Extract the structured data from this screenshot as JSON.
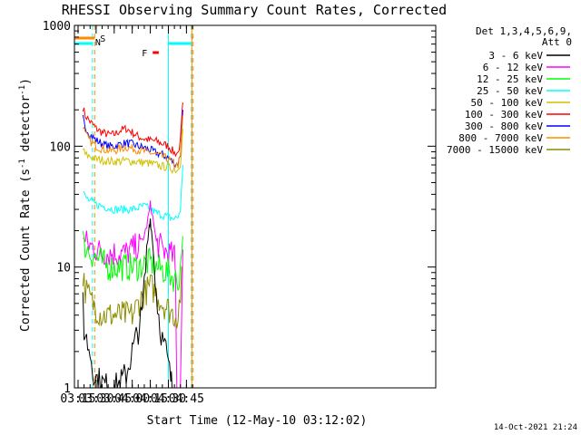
{
  "chart_data": {
    "type": "line",
    "title": "RHESSI Observing Summary Count Rates, Corrected",
    "xlabel": "Start Time (12-May-10 03:12:02)",
    "ylabel": "Corrected Count Rate (s",
    "ylabel_sup1": "-1",
    "ylabel_mid": " detector",
    "ylabel_sup2": "-1",
    "ylabel_end": ")",
    "y_scale": "log",
    "ylim": [
      1,
      1000
    ],
    "xlim_min": [
      192,
      492
    ],
    "x_ticks": [
      {
        "min": 195,
        "label": "03:15"
      },
      {
        "min": 210,
        "label": "03:30"
      },
      {
        "min": 225,
        "label": "03:45"
      },
      {
        "min": 240,
        "label": "04:00"
      },
      {
        "min": 255,
        "label": "04:15"
      },
      {
        "min": 270,
        "label": "04:30"
      },
      {
        "min": 285,
        "label": "04:45"
      }
    ],
    "y_ticks": [
      {
        "value": 1,
        "label": "1"
      },
      {
        "value": 10,
        "label": "10"
      },
      {
        "value": 100,
        "label": "100"
      },
      {
        "value": 1000,
        "label": "1000"
      }
    ],
    "detectors_label": "Det 1,3,4,5,6,9,",
    "attenuator_label": "Att 0",
    "timestamp": "14-Oct-2021 21:24",
    "legend": [
      {
        "name": "3 - 6 keV",
        "color": "#000000"
      },
      {
        "name": "6 - 12 keV",
        "color": "#ff00ff"
      },
      {
        "name": "12 - 25 keV",
        "color": "#00ff00"
      },
      {
        "name": "25 - 50 keV",
        "color": "#00ffff"
      },
      {
        "name": "50 - 100 keV",
        "color": "#d0c000"
      },
      {
        "name": "100 - 300 keV",
        "color": "#ff0000"
      },
      {
        "name": "300 - 800 keV",
        "color": "#0000ff"
      },
      {
        "name": "800 - 7000 keV",
        "color": "#ff8c00"
      },
      {
        "name": "7000 - 15000 keV",
        "color": "#8b8b00"
      }
    ],
    "series": [
      {
        "name": "100 - 300 keV",
        "color": "#ff0000",
        "x": [
          199,
          201,
          205,
          210,
          215,
          220,
          225,
          230,
          235,
          240,
          245,
          250,
          255,
          260,
          265,
          270,
          275,
          278,
          280,
          281,
          282
        ],
        "y": [
          210,
          180,
          160,
          140,
          130,
          125,
          125,
          135,
          140,
          130,
          120,
          115,
          112,
          110,
          105,
          100,
          88,
          88,
          110,
          160,
          230
        ]
      },
      {
        "name": "300 - 800 keV",
        "color": "#0000ff",
        "x": [
          199,
          201,
          205,
          210,
          215,
          220,
          225,
          230,
          235,
          240,
          245,
          250,
          255,
          260,
          265,
          270,
          275,
          278,
          280,
          281,
          282
        ],
        "y": [
          170,
          145,
          125,
          112,
          105,
          100,
          100,
          104,
          106,
          104,
          100,
          97,
          93,
          88,
          85,
          80,
          72,
          72,
          85,
          130,
          200
        ]
      },
      {
        "name": "800 - 7000 keV",
        "color": "#ff8c00",
        "x": [
          199,
          201,
          205,
          210,
          215,
          220,
          225,
          230,
          235,
          240,
          245,
          250,
          255,
          260,
          265,
          270,
          275,
          278,
          280,
          281,
          282
        ],
        "y": [
          150,
          125,
          110,
          100,
          95,
          92,
          92,
          95,
          98,
          96,
          93,
          90,
          88,
          85,
          82,
          78,
          70,
          70,
          80,
          120,
          180
        ]
      },
      {
        "name": "50 - 100 keV",
        "color": "#d0c000",
        "x": [
          199,
          201,
          205,
          210,
          215,
          220,
          225,
          230,
          235,
          240,
          245,
          250,
          255,
          260,
          265,
          270,
          275,
          278,
          280,
          281,
          282
        ],
        "y": [
          95,
          85,
          82,
          78,
          77,
          75,
          75,
          75,
          76,
          75,
          74,
          73,
          72,
          70,
          68,
          67,
          64,
          64,
          72,
          100,
          140
        ]
      },
      {
        "name": "25 - 50 keV",
        "color": "#00ffff",
        "x": [
          199,
          201,
          205,
          210,
          215,
          220,
          225,
          230,
          235,
          240,
          245,
          250,
          255,
          260,
          265,
          270,
          275,
          278,
          280,
          281,
          282
        ],
        "y": [
          42,
          38,
          35,
          33,
          32,
          31,
          30,
          30,
          30,
          30,
          31,
          32,
          30,
          28,
          27,
          26,
          25,
          26,
          30,
          45,
          70
        ]
      },
      {
        "name": "6 - 12 keV",
        "color": "#ff00ff",
        "x": [
          199,
          201,
          205,
          210,
          215,
          220,
          225,
          230,
          235,
          240,
          245,
          250,
          252,
          254,
          255,
          256,
          258,
          260,
          265,
          270,
          275,
          276,
          277,
          280,
          282
        ],
        "y": [
          18,
          16,
          15,
          14,
          13,
          13,
          13,
          13,
          13,
          14,
          15,
          18,
          22,
          28,
          33,
          30,
          22,
          16,
          14,
          13,
          12,
          8,
          1,
          1,
          14
        ]
      },
      {
        "name": "12 - 25 keV",
        "color": "#00ff00",
        "x": [
          199,
          201,
          205,
          210,
          215,
          220,
          225,
          230,
          235,
          240,
          245,
          250,
          255,
          260,
          265,
          270,
          275,
          278,
          280,
          282
        ],
        "y": [
          19,
          15,
          13,
          12,
          11,
          10,
          10,
          10,
          10,
          10,
          10,
          10.5,
          11,
          10,
          9.5,
          9,
          8,
          7.5,
          10,
          18
        ]
      },
      {
        "name": "7000 - 15000 keV",
        "color": "#8b8b00",
        "x": [
          199,
          201,
          205,
          210,
          215,
          220,
          225,
          230,
          235,
          240,
          245,
          250,
          255,
          260,
          265,
          270,
          275,
          278,
          280,
          282
        ],
        "y": [
          8.5,
          6.5,
          5.5,
          4.5,
          4,
          4,
          4,
          4,
          4,
          4,
          5,
          6,
          7,
          6,
          5,
          4.5,
          4,
          4,
          6,
          10
        ]
      },
      {
        "name": "3 - 6 keV",
        "color": "#000000",
        "x": [
          199,
          200,
          202,
          205,
          207,
          210,
          215,
          220,
          225,
          230,
          235,
          240,
          245,
          248,
          250,
          252,
          254,
          255,
          256,
          258,
          260,
          262,
          265,
          268,
          270,
          272,
          273
        ],
        "y": [
          5,
          3,
          2.5,
          2,
          1.5,
          1.2,
          1.1,
          1,
          1,
          1.1,
          1.3,
          2,
          3,
          4,
          7,
          13,
          22,
          25,
          20,
          12,
          6,
          4,
          2.5,
          2,
          1.5,
          1.2,
          1
        ]
      }
    ],
    "annotations": [
      {
        "label": "S",
        "color": "#ff8c00",
        "segments": [
          [
            192,
            208.8
          ],
          [
            289.5,
            290.5
          ]
        ]
      },
      {
        "label": "N",
        "color": "#00ffff",
        "segments": [
          [
            192,
            207
          ],
          [
            270,
            289
          ]
        ]
      },
      {
        "label": "F",
        "color": "#ff0000",
        "segments": [
          [
            257,
            262
          ]
        ]
      }
    ],
    "shade_lines": [
      {
        "color": "#00ffff",
        "style": "dashed",
        "x": 207
      },
      {
        "color": "#ff8c00",
        "style": "dashed",
        "x": 208.8
      },
      {
        "color": "#00ffff",
        "style": "solid",
        "x": 270
      },
      {
        "color": "#00ffff",
        "style": "dashed",
        "x": 289
      },
      {
        "color": "#ff8c00",
        "style": "solid",
        "x": 289.5
      },
      {
        "color": "#ff8c00",
        "style": "dashed",
        "x": 290.5
      }
    ]
  }
}
